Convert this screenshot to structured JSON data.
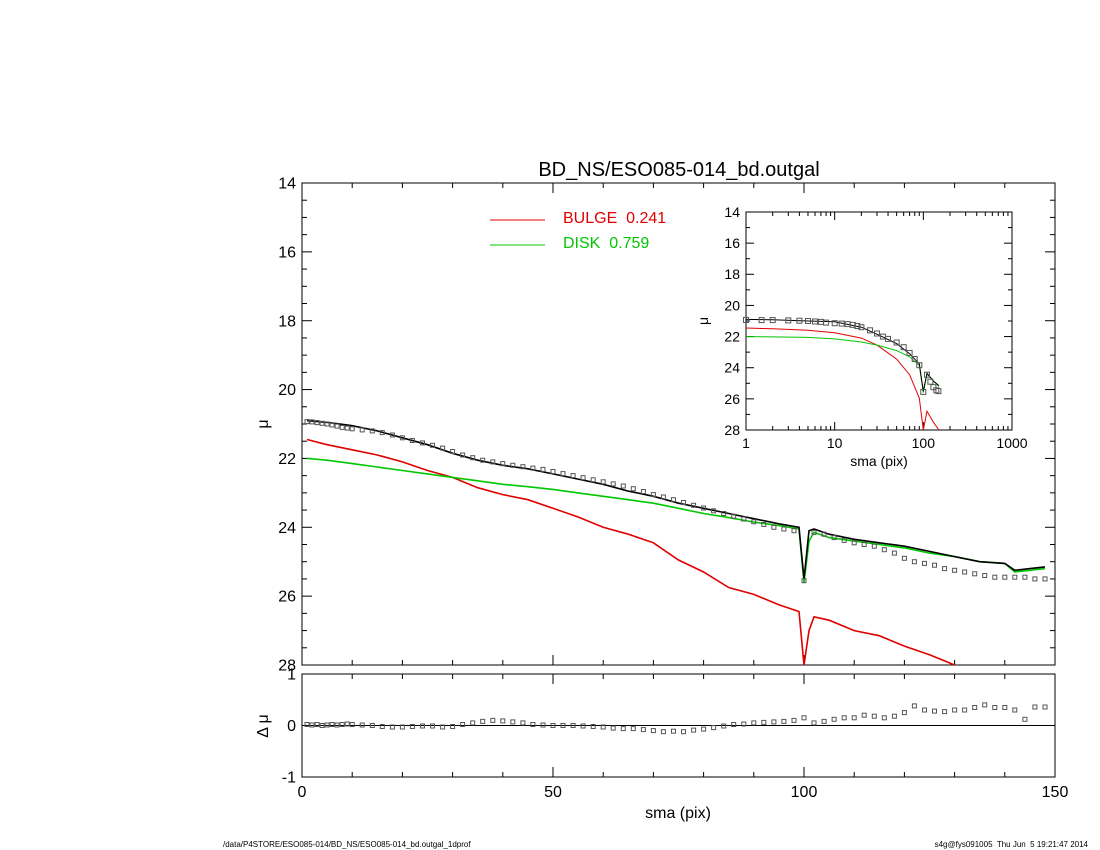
{
  "chart_data": [
    {
      "type": "line",
      "title": "BD_NS/ESO085-014_bd.outgal",
      "xlabel": "sma (pix)",
      "ylabel": "μ",
      "xlim": [
        0,
        150
      ],
      "ylim": [
        14,
        28
      ],
      "y_inverted": true,
      "xticks": [
        "0",
        "50",
        "100",
        "150"
      ],
      "yticks": [
        "14",
        "16",
        "18",
        "20",
        "22",
        "24",
        "26",
        "28"
      ],
      "legend": [
        {
          "label": "BULGE  0.241",
          "color": "#e00000"
        },
        {
          "label": "DISK  0.759",
          "color": "#00c800"
        }
      ],
      "series": [
        {
          "name": "BULGE",
          "color": "#e00000",
          "x": [
            1,
            5,
            10,
            15,
            20,
            25,
            30,
            35,
            40,
            45,
            50,
            55,
            60,
            65,
            70,
            75,
            80,
            85,
            90,
            95,
            99,
            100,
            101,
            102,
            105,
            110,
            115,
            120,
            125,
            130
          ],
          "y": [
            21.45,
            21.6,
            21.75,
            21.9,
            22.1,
            22.35,
            22.55,
            22.85,
            23.05,
            23.2,
            23.45,
            23.7,
            24.0,
            24.2,
            24.45,
            24.95,
            25.3,
            25.75,
            25.95,
            26.25,
            26.45,
            28.0,
            27.0,
            26.6,
            26.7,
            27.0,
            27.15,
            27.45,
            27.7,
            28.0
          ]
        },
        {
          "name": "DISK",
          "color": "#00c800",
          "x": [
            1,
            5,
            10,
            15,
            20,
            25,
            30,
            35,
            40,
            45,
            50,
            55,
            60,
            65,
            70,
            75,
            80,
            85,
            90,
            95,
            99,
            100,
            101,
            102,
            105,
            110,
            115,
            120,
            125,
            130,
            135,
            140,
            142,
            145,
            148
          ],
          "y": [
            22.0,
            22.05,
            22.15,
            22.25,
            22.35,
            22.45,
            22.55,
            22.65,
            22.75,
            22.82,
            22.9,
            23.0,
            23.1,
            23.2,
            23.3,
            23.45,
            23.6,
            23.72,
            23.85,
            23.95,
            24.05,
            25.6,
            24.4,
            24.15,
            24.3,
            24.4,
            24.5,
            24.6,
            24.75,
            24.85,
            25.0,
            25.05,
            25.3,
            25.25,
            25.2
          ]
        },
        {
          "name": "",
          "color": "#000000",
          "x": [
            1,
            5,
            10,
            15,
            20,
            25,
            30,
            35,
            40,
            45,
            50,
            55,
            60,
            65,
            70,
            75,
            80,
            85,
            90,
            95,
            99,
            100,
            101,
            102,
            105,
            110,
            115,
            120,
            125,
            130,
            135,
            140,
            142,
            145,
            148
          ],
          "y": [
            20.9,
            20.95,
            21.05,
            21.2,
            21.4,
            21.6,
            21.85,
            22.05,
            22.2,
            22.3,
            22.45,
            22.6,
            22.75,
            22.95,
            23.1,
            23.3,
            23.45,
            23.6,
            23.75,
            23.9,
            24.0,
            25.5,
            24.1,
            24.05,
            24.2,
            24.35,
            24.45,
            24.55,
            24.7,
            24.85,
            25.0,
            25.05,
            25.25,
            25.2,
            25.15
          ]
        }
      ],
      "points": {
        "x": [
          1,
          2,
          3,
          4,
          5,
          6,
          7,
          8,
          9,
          10,
          12,
          14,
          16,
          18,
          20,
          22,
          24,
          26,
          28,
          30,
          32,
          34,
          36,
          38,
          40,
          42,
          44,
          46,
          48,
          50,
          52,
          54,
          56,
          58,
          60,
          62,
          64,
          66,
          68,
          70,
          72,
          74,
          76,
          78,
          80,
          82,
          84,
          86,
          88,
          90,
          92,
          94,
          96,
          98,
          100,
          102,
          104,
          106,
          108,
          110,
          112,
          114,
          116,
          118,
          120,
          122,
          124,
          126,
          128,
          130,
          132,
          134,
          136,
          138,
          140,
          142,
          144,
          146,
          148
        ],
        "y": [
          20.93,
          20.94,
          20.96,
          20.98,
          21.0,
          21.03,
          21.06,
          21.1,
          21.12,
          21.14,
          21.17,
          21.2,
          21.25,
          21.32,
          21.4,
          21.48,
          21.55,
          21.62,
          21.7,
          21.8,
          21.9,
          21.98,
          22.05,
          22.1,
          22.15,
          22.2,
          22.24,
          22.28,
          22.32,
          22.38,
          22.44,
          22.5,
          22.56,
          22.62,
          22.68,
          22.74,
          22.8,
          22.88,
          22.96,
          23.05,
          23.12,
          23.2,
          23.28,
          23.36,
          23.44,
          23.52,
          23.6,
          23.68,
          23.76,
          23.84,
          23.92,
          24.0,
          24.05,
          24.1,
          25.55,
          24.15,
          24.2,
          24.3,
          24.38,
          24.45,
          24.5,
          24.55,
          24.65,
          24.75,
          24.9,
          25.0,
          25.05,
          25.1,
          25.2,
          25.25,
          25.3,
          25.35,
          25.4,
          25.45,
          25.45,
          25.45,
          25.45,
          25.5,
          25.5
        ]
      }
    },
    {
      "type": "scatter",
      "title": "",
      "xlabel": "sma (pix)",
      "ylabel": "Δ μ",
      "xlim": [
        0,
        150
      ],
      "ylim": [
        -1,
        1
      ],
      "xticks": [
        "0",
        "50",
        "100",
        "150"
      ],
      "yticks": [
        "-1",
        "0",
        "1"
      ],
      "x": [
        1,
        2,
        3,
        4,
        5,
        6,
        7,
        8,
        9,
        10,
        12,
        14,
        16,
        18,
        20,
        22,
        24,
        26,
        28,
        30,
        32,
        34,
        36,
        38,
        40,
        42,
        44,
        46,
        48,
        50,
        52,
        54,
        56,
        58,
        60,
        62,
        64,
        66,
        68,
        70,
        72,
        74,
        76,
        78,
        80,
        82,
        84,
        86,
        88,
        90,
        92,
        94,
        96,
        98,
        100,
        102,
        104,
        106,
        108,
        110,
        112,
        114,
        116,
        118,
        120,
        122,
        124,
        126,
        128,
        130,
        132,
        134,
        136,
        138,
        140,
        142,
        144,
        146,
        148
      ],
      "y": [
        0.02,
        0.01,
        0.02,
        0.0,
        0.01,
        0.02,
        0.01,
        0.02,
        0.03,
        0.02,
        0.01,
        0.0,
        -0.02,
        -0.03,
        -0.03,
        -0.02,
        -0.01,
        -0.01,
        -0.03,
        -0.02,
        0.02,
        0.05,
        0.08,
        0.1,
        0.09,
        0.07,
        0.05,
        0.02,
        0.01,
        0.0,
        0.0,
        0.0,
        -0.01,
        -0.02,
        -0.03,
        -0.05,
        -0.06,
        -0.06,
        -0.08,
        -0.1,
        -0.12,
        -0.11,
        -0.12,
        -0.09,
        -0.07,
        -0.04,
        -0.01,
        0.02,
        0.03,
        0.05,
        0.06,
        0.07,
        0.08,
        0.1,
        0.15,
        0.05,
        0.08,
        0.12,
        0.15,
        0.15,
        0.2,
        0.18,
        0.15,
        0.18,
        0.25,
        0.38,
        0.3,
        0.28,
        0.27,
        0.3,
        0.3,
        0.35,
        0.4,
        0.35,
        0.35,
        0.3,
        0.12,
        0.36,
        0.36
      ]
    },
    {
      "type": "line",
      "title": "",
      "xlabel": "sma (pix)",
      "ylabel": "μ",
      "x_scale": "log",
      "xlim": [
        1,
        1000
      ],
      "ylim": [
        14,
        28
      ],
      "y_inverted": true,
      "xticks": [
        "1",
        "10",
        "100",
        "1000"
      ],
      "yticks": [
        "14",
        "16",
        "18",
        "20",
        "22",
        "24",
        "26",
        "28"
      ],
      "series": [
        {
          "name": "BULGE",
          "color": "#e00000",
          "x": [
            1,
            2,
            5,
            10,
            20,
            30,
            50,
            70,
            90,
            100,
            110,
            130,
            150
          ],
          "y": [
            21.45,
            21.5,
            21.6,
            21.75,
            22.1,
            22.55,
            23.45,
            24.45,
            25.95,
            28.0,
            26.8,
            27.5,
            28.0
          ]
        },
        {
          "name": "DISK",
          "color": "#00c800",
          "x": [
            1,
            2,
            5,
            10,
            20,
            30,
            50,
            70,
            90,
            100,
            110,
            130,
            150
          ],
          "y": [
            22.0,
            22.02,
            22.05,
            22.15,
            22.35,
            22.55,
            22.9,
            23.3,
            23.85,
            25.6,
            24.4,
            24.85,
            25.2
          ]
        },
        {
          "name": "",
          "color": "#000000",
          "x": [
            1,
            2,
            5,
            10,
            20,
            30,
            50,
            70,
            90,
            100,
            110,
            130,
            150
          ],
          "y": [
            20.9,
            20.92,
            21.0,
            21.05,
            21.4,
            21.85,
            22.45,
            23.1,
            23.75,
            25.5,
            24.35,
            24.85,
            25.15
          ]
        }
      ],
      "points": {
        "x": [
          1,
          1.5,
          2,
          3,
          4,
          5,
          6,
          7,
          8,
          10,
          12,
          14,
          16,
          18,
          20,
          25,
          30,
          35,
          40,
          50,
          60,
          70,
          80,
          90,
          100,
          110,
          120,
          130,
          140,
          148
        ],
        "y": [
          20.93,
          20.94,
          20.94,
          20.96,
          20.98,
          21.0,
          21.03,
          21.06,
          21.1,
          21.14,
          21.17,
          21.2,
          21.25,
          21.32,
          21.4,
          21.6,
          21.8,
          22.0,
          22.15,
          22.38,
          22.68,
          23.05,
          23.44,
          23.84,
          25.55,
          24.45,
          24.9,
          25.25,
          25.45,
          25.5
        ]
      }
    }
  ],
  "footer": {
    "left": "/data/P4STORE/ESO085-014/BD_NS/ESO085-014_bd.outgal_1dprof",
    "right": "s4g@fys091005  Thu Jun  5 19:21:47 2014"
  }
}
